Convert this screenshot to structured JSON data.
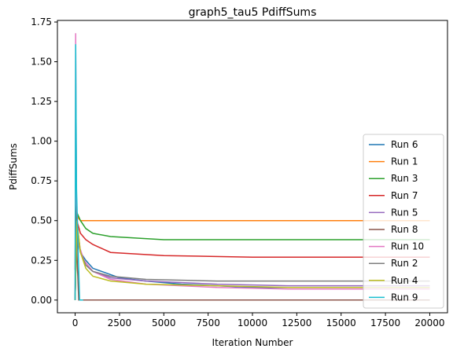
{
  "chart_data": {
    "type": "line",
    "title": "graph5_tau5 PdiffSums",
    "xlabel": "Iteration Number",
    "ylabel": "PdiffSums",
    "xlim": [
      -1000,
      21000
    ],
    "ylim": [
      -0.08,
      1.76
    ],
    "xticks": [
      0,
      2500,
      5000,
      7500,
      10000,
      12500,
      15000,
      17500,
      20000
    ],
    "xtick_labels": [
      "0",
      "2500",
      "5000",
      "7500",
      "10000",
      "12500",
      "15000",
      "17500",
      "20000"
    ],
    "yticks": [
      0.0,
      0.25,
      0.5,
      0.75,
      1.0,
      1.25,
      1.5,
      1.75
    ],
    "ytick_labels": [
      "0.00",
      "0.25",
      "0.50",
      "0.75",
      "1.00",
      "1.25",
      "1.50",
      "1.75"
    ],
    "grid": false,
    "legend_position": "lower-right",
    "series": [
      {
        "name": "Run 6",
        "color": "#1f77b4",
        "x": [
          0,
          50,
          150,
          300,
          600,
          1000,
          1500,
          2500,
          4000,
          6000,
          8000,
          10000,
          13000,
          16000,
          20000
        ],
        "values": [
          0.0,
          0.55,
          0.38,
          0.3,
          0.25,
          0.2,
          0.18,
          0.14,
          0.12,
          0.1,
          0.09,
          0.08,
          0.08,
          0.08,
          0.08
        ]
      },
      {
        "name": "Run 1",
        "color": "#ff7f0e",
        "x": [
          0,
          50,
          150,
          300,
          600,
          1000,
          2000,
          20000
        ],
        "values": [
          0.0,
          0.55,
          0.52,
          0.5,
          0.5,
          0.5,
          0.5,
          0.5
        ]
      },
      {
        "name": "Run 3",
        "color": "#2ca02c",
        "x": [
          0,
          100,
          300,
          600,
          1000,
          2000,
          5000,
          10000,
          15000,
          20000
        ],
        "values": [
          0.0,
          0.55,
          0.5,
          0.45,
          0.42,
          0.4,
          0.38,
          0.38,
          0.38,
          0.38
        ]
      },
      {
        "name": "Run 7",
        "color": "#d62728",
        "x": [
          0,
          100,
          300,
          600,
          1000,
          2000,
          5000,
          10000,
          15000,
          20000
        ],
        "values": [
          0.0,
          0.5,
          0.42,
          0.38,
          0.35,
          0.3,
          0.28,
          0.27,
          0.27,
          0.27
        ]
      },
      {
        "name": "Run 5",
        "color": "#9467bd",
        "x": [
          0,
          100,
          300,
          600,
          1000,
          2000,
          4000,
          8000,
          12000,
          20000
        ],
        "values": [
          0.0,
          0.5,
          0.3,
          0.22,
          0.18,
          0.14,
          0.12,
          0.1,
          0.09,
          0.09
        ]
      },
      {
        "name": "Run 8",
        "color": "#8c564b",
        "x": [
          0,
          50,
          100,
          200,
          220,
          20000
        ],
        "values": [
          0.19,
          1.02,
          0.3,
          0.0,
          0.0,
          0.0
        ]
      },
      {
        "name": "Run 10",
        "color": "#e377c2",
        "x": [
          0,
          30,
          80,
          200,
          500,
          1000,
          2000,
          4000,
          8000,
          12000,
          20000
        ],
        "values": [
          0.0,
          1.68,
          0.6,
          0.35,
          0.25,
          0.18,
          0.13,
          0.1,
          0.08,
          0.07,
          0.07
        ]
      },
      {
        "name": "Run 2",
        "color": "#7f7f7f",
        "x": [
          0,
          100,
          300,
          600,
          1000,
          2000,
          4000,
          8000,
          12000,
          20000
        ],
        "values": [
          0.0,
          0.45,
          0.3,
          0.22,
          0.18,
          0.15,
          0.13,
          0.12,
          0.12,
          0.12
        ]
      },
      {
        "name": "Run 4",
        "color": "#bcbd22",
        "x": [
          0,
          100,
          300,
          600,
          1000,
          2000,
          4000,
          8000,
          12000,
          20000
        ],
        "values": [
          0.0,
          0.5,
          0.3,
          0.2,
          0.15,
          0.12,
          0.1,
          0.09,
          0.08,
          0.08
        ]
      },
      {
        "name": "Run 9",
        "color": "#17becf",
        "x": [
          0,
          30,
          80,
          150,
          250,
          300,
          450
        ],
        "values": [
          0.0,
          1.61,
          0.7,
          0.4,
          0.0,
          0.0,
          0.0
        ]
      }
    ]
  }
}
